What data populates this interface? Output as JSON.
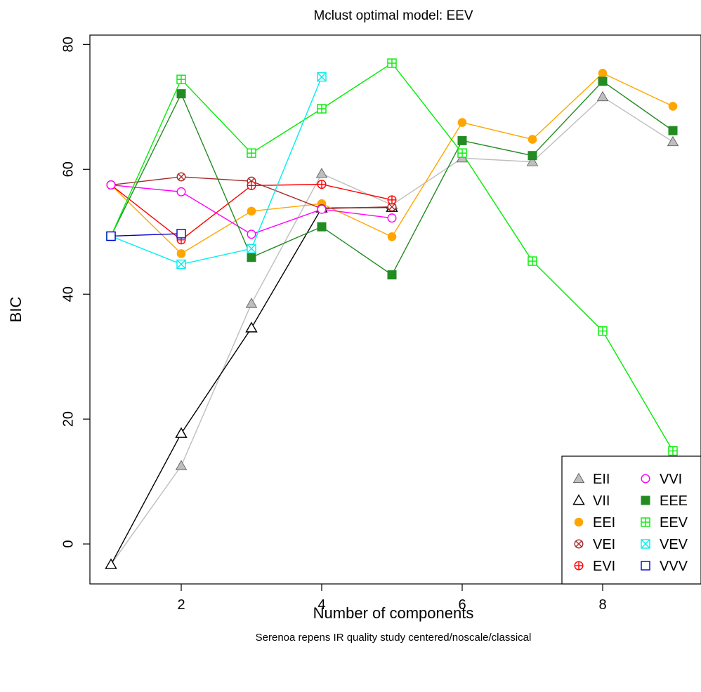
{
  "chart_data": {
    "type": "line",
    "title": "Mclust optimal model: EEV",
    "xlabel": "Number of components",
    "ylabel": "BIC",
    "subtitle": "Serenoa repens IR quality study  centered/noscale/classical",
    "xlim": [
      0.7,
      9.4
    ],
    "ylim": [
      -6.4,
      81.5
    ],
    "xticks": [
      2,
      4,
      6,
      8
    ],
    "yticks": [
      0,
      20,
      40,
      60,
      80
    ],
    "legend_position": "bottom-right",
    "x": [
      1,
      2,
      3,
      4,
      5,
      6,
      7,
      8,
      9
    ],
    "series": [
      {
        "name": "EII",
        "color": "#bebebe",
        "marker": "triangle-filled",
        "values": [
          -3.3,
          12.5,
          38.5,
          59.3,
          54.3,
          61.8,
          61.2,
          71.6,
          64.4
        ]
      },
      {
        "name": "VII",
        "color": "#000000",
        "marker": "triangle-open",
        "values": [
          -3.3,
          17.7,
          34.6,
          53.8,
          53.9,
          null,
          null,
          null,
          null
        ]
      },
      {
        "name": "EEI",
        "color": "#ffa500",
        "marker": "circle-filled",
        "values": [
          57.5,
          46.5,
          53.3,
          54.5,
          49.2,
          67.5,
          64.8,
          75.4,
          70.1
        ]
      },
      {
        "name": "VEI",
        "color": "#a52a2a",
        "marker": "circle-x",
        "values": [
          57.5,
          58.8,
          58.1,
          53.7,
          54.0,
          null,
          null,
          null,
          null
        ]
      },
      {
        "name": "EVI",
        "color": "#ff0000",
        "marker": "circle-plus",
        "values": [
          57.5,
          48.7,
          57.4,
          57.6,
          55.1,
          null,
          null,
          null,
          null
        ]
      },
      {
        "name": "VVI",
        "color": "#ff00ff",
        "marker": "circle-open",
        "values": [
          57.5,
          56.4,
          49.6,
          53.6,
          52.2,
          null,
          null,
          null,
          null
        ]
      },
      {
        "name": "EEE",
        "color": "#228b22",
        "marker": "square-filled",
        "values": [
          49.3,
          72.1,
          45.9,
          50.8,
          43.1,
          64.6,
          62.2,
          74.1,
          66.2
        ]
      },
      {
        "name": "EEV",
        "color": "#00ee00",
        "marker": "square-plus",
        "values": [
          49.3,
          74.4,
          62.6,
          69.7,
          77.0,
          62.6,
          45.3,
          34.1,
          14.9
        ]
      },
      {
        "name": "VEV",
        "color": "#00eeee",
        "marker": "square-x",
        "values": [
          49.3,
          44.8,
          47.3,
          74.8,
          null,
          null,
          null,
          null,
          null
        ]
      },
      {
        "name": "VVV",
        "color": "#0000cd",
        "marker": "square-open",
        "values": [
          49.3,
          49.7,
          null,
          null,
          null,
          null,
          null,
          null,
          null
        ]
      }
    ]
  }
}
